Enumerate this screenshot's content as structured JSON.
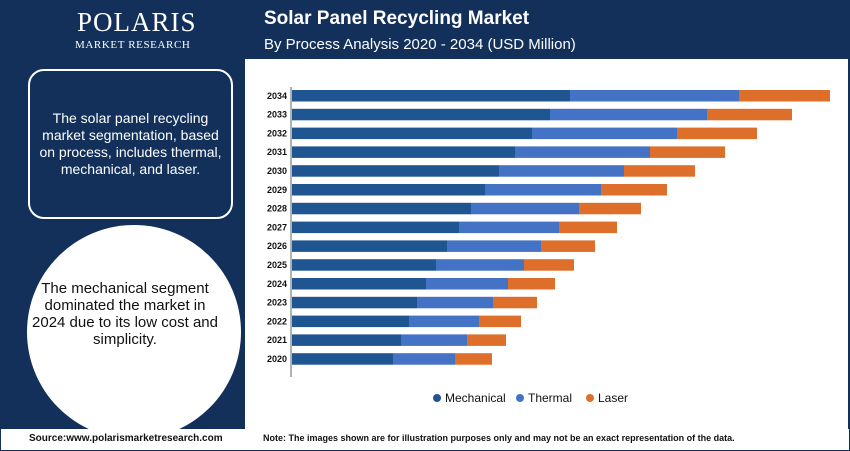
{
  "brand": {
    "name": "POLARIS",
    "tagline": "MARKET RESEARCH"
  },
  "left_panel": {
    "box_text": "The solar panel recycling market segmentation, based on process, includes thermal, mechanical, and laser.",
    "circle_text": "The mechanical segment dominated the market in 2024 due to its low cost and simplicity."
  },
  "footer": {
    "source": "Source:www.polarismarketresearch.com",
    "note": "Note: The images shown are for illustration purposes only and may not be an exact representation of the data."
  },
  "colors": {
    "background": "#13305a",
    "mechanical": "#1f5591",
    "thermal": "#4472c4",
    "laser": "#dd6f2a"
  },
  "chart_data": {
    "type": "bar",
    "orientation": "horizontal",
    "stacked": true,
    "title": "Solar Panel Recycling Market",
    "subtitle": "By Process Analysis 2020 - 2034 (USD Million)",
    "categories": [
      "2034",
      "2033",
      "2032",
      "2031",
      "2030",
      "2029",
      "2028",
      "2027",
      "2026",
      "2025",
      "2024",
      "2023",
      "2022",
      "2021",
      "2020"
    ],
    "series": [
      {
        "name": "Mechanical",
        "color": "#1f5591",
        "values": [
          278,
          258,
          240,
          223,
          207,
          193,
          179,
          167,
          155,
          144,
          134,
          125,
          117,
          109,
          101
        ]
      },
      {
        "name": "Thermal",
        "color": "#4472c4",
        "values": [
          169,
          157,
          145,
          135,
          125,
          116,
          108,
          100,
          94,
          88,
          82,
          76,
          70,
          66,
          62
        ]
      },
      {
        "name": "Laser",
        "color": "#dd6f2a",
        "values": [
          91,
          85,
          80,
          75,
          71,
          66,
          62,
          58,
          54,
          50,
          47,
          44,
          42,
          39,
          37
        ]
      }
    ],
    "xlim": [
      0,
      540
    ],
    "x_axis_visible": false,
    "grid": false,
    "legend_position": "bottom"
  }
}
